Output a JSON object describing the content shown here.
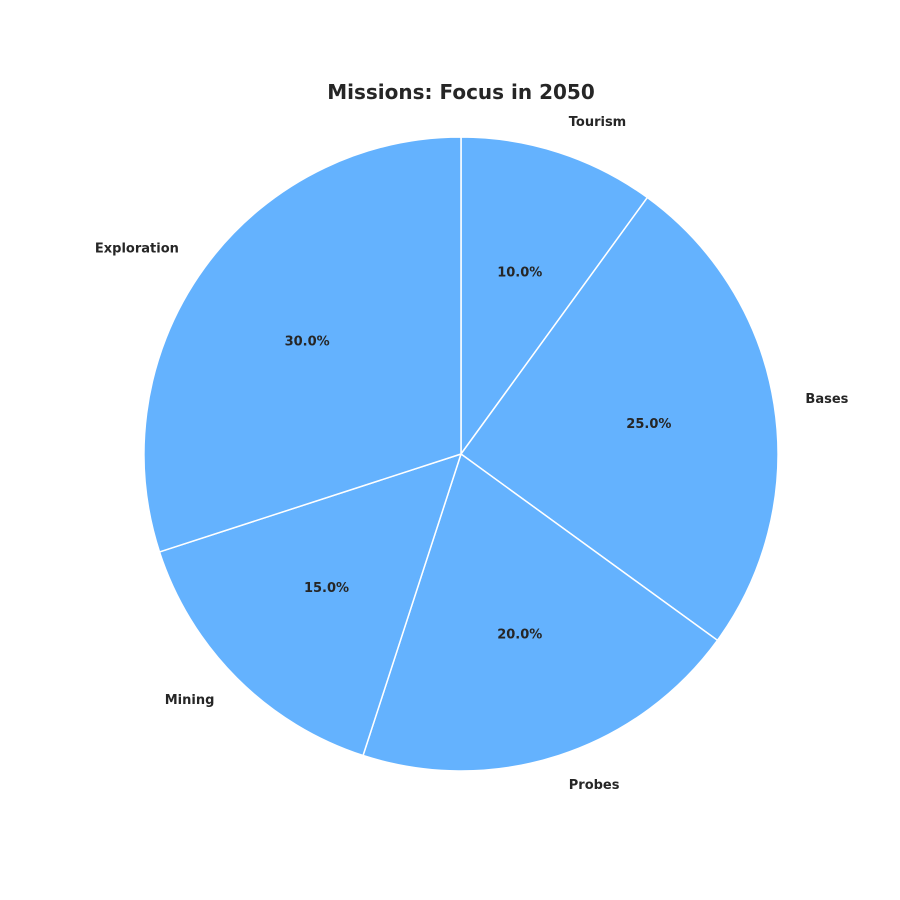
{
  "chart_data": {
    "type": "pie",
    "title": "Missions: Focus in 2050",
    "categories": [
      "Tourism",
      "Bases",
      "Probes",
      "Mining",
      "Exploration"
    ],
    "values": [
      10,
      25,
      20,
      15,
      30
    ],
    "percent_labels": [
      "10.0%",
      "25.0%",
      "20.0%",
      "15.0%",
      "30.0%"
    ],
    "start_angle_deg": 90,
    "direction": "clockwise",
    "slice_color": "#64b2fe",
    "edge_color": "#ffffff",
    "legend": "none"
  }
}
